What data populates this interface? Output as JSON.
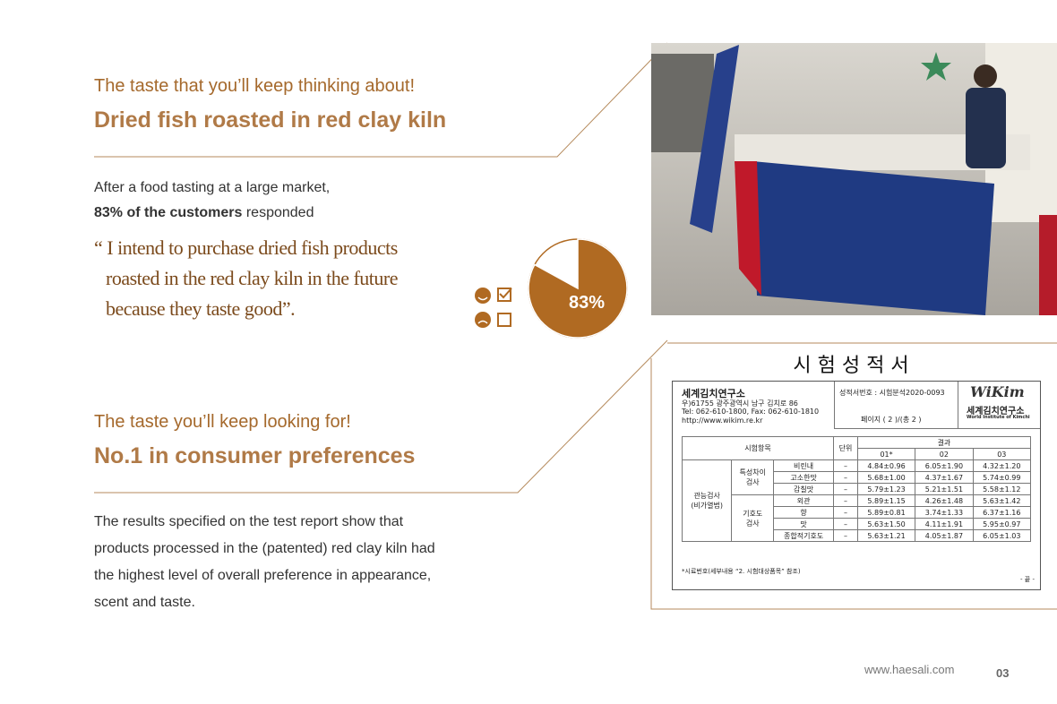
{
  "section1": {
    "subtitle": "The taste that you’ll keep thinking about!",
    "title": "Dried fish roasted in red clay kiln",
    "intro": "After a food tasting at a large market,",
    "intro_bold": "83% of the customers",
    "intro_rest": "responded",
    "quote": [
      "“ I intend to purchase dried fish products",
      "roasted in the red clay kiln in the future",
      "because they taste good”."
    ],
    "pie": {
      "value": 83,
      "label": "83%"
    }
  },
  "section2": {
    "subtitle": "The taste you’ll keep looking for!",
    "title": "No.1 in consumer preferences",
    "body": [
      "The results specified on the test report show that",
      "products processed in the (patented) red clay kiln had",
      "the highest level of overall preference in appearance,",
      "scent and taste."
    ]
  },
  "report": {
    "title": "시 험 성 적 서",
    "org": "세계김치연구소",
    "address": [
      "우)61755 광주광역시 남구 김치로 86",
      "Tel: 062-610-1800, Fax: 062-610-1810",
      "http://www.wikim.re.kr"
    ],
    "report_no": "성적서번호 : 시험분석2020-0093",
    "page": "페이지 ( 2 )/(총 2 )",
    "logo": "WiKim",
    "logo_ko": "세계김치연구소",
    "logo_en": "World Institute of Kimchi",
    "head": [
      "시험항목",
      "단위",
      "결과"
    ],
    "cols": [
      "01*",
      "02",
      "03"
    ],
    "group": [
      "관능검사",
      "(비가열법)"
    ],
    "subgroups": [
      {
        "name": [
          "특성차이",
          "검사"
        ],
        "rows": [
          [
            "비린내",
            "–",
            "4.84±0.96",
            "6.05±1.90",
            "4.32±1.20"
          ],
          [
            "고소한맛",
            "–",
            "5.68±1.00",
            "4.37±1.67",
            "5.74±0.99"
          ],
          [
            "감칠맛",
            "–",
            "5.79±1.23",
            "5.21±1.51",
            "5.58±1.12"
          ]
        ]
      },
      {
        "name": [
          "기호도",
          "검사"
        ],
        "rows": [
          [
            "외관",
            "–",
            "5.89±1.15",
            "4.26±1.48",
            "5.63±1.42"
          ],
          [
            "향",
            "–",
            "5.89±0.81",
            "3.74±1.33",
            "6.37±1.16"
          ],
          [
            "맛",
            "–",
            "5.63±1.50",
            "4.11±1.91",
            "5.95±0.97"
          ],
          [
            "종합적기호도",
            "–",
            "5.63±1.21",
            "4.05±1.87",
            "6.05±1.03"
          ]
        ]
      }
    ],
    "footnote": "*시료번호(세부내용 “2. 시험대상품목” 참조)",
    "end": "- 끝 -"
  },
  "footer": {
    "url": "www.haesali.com",
    "page": "03"
  }
}
